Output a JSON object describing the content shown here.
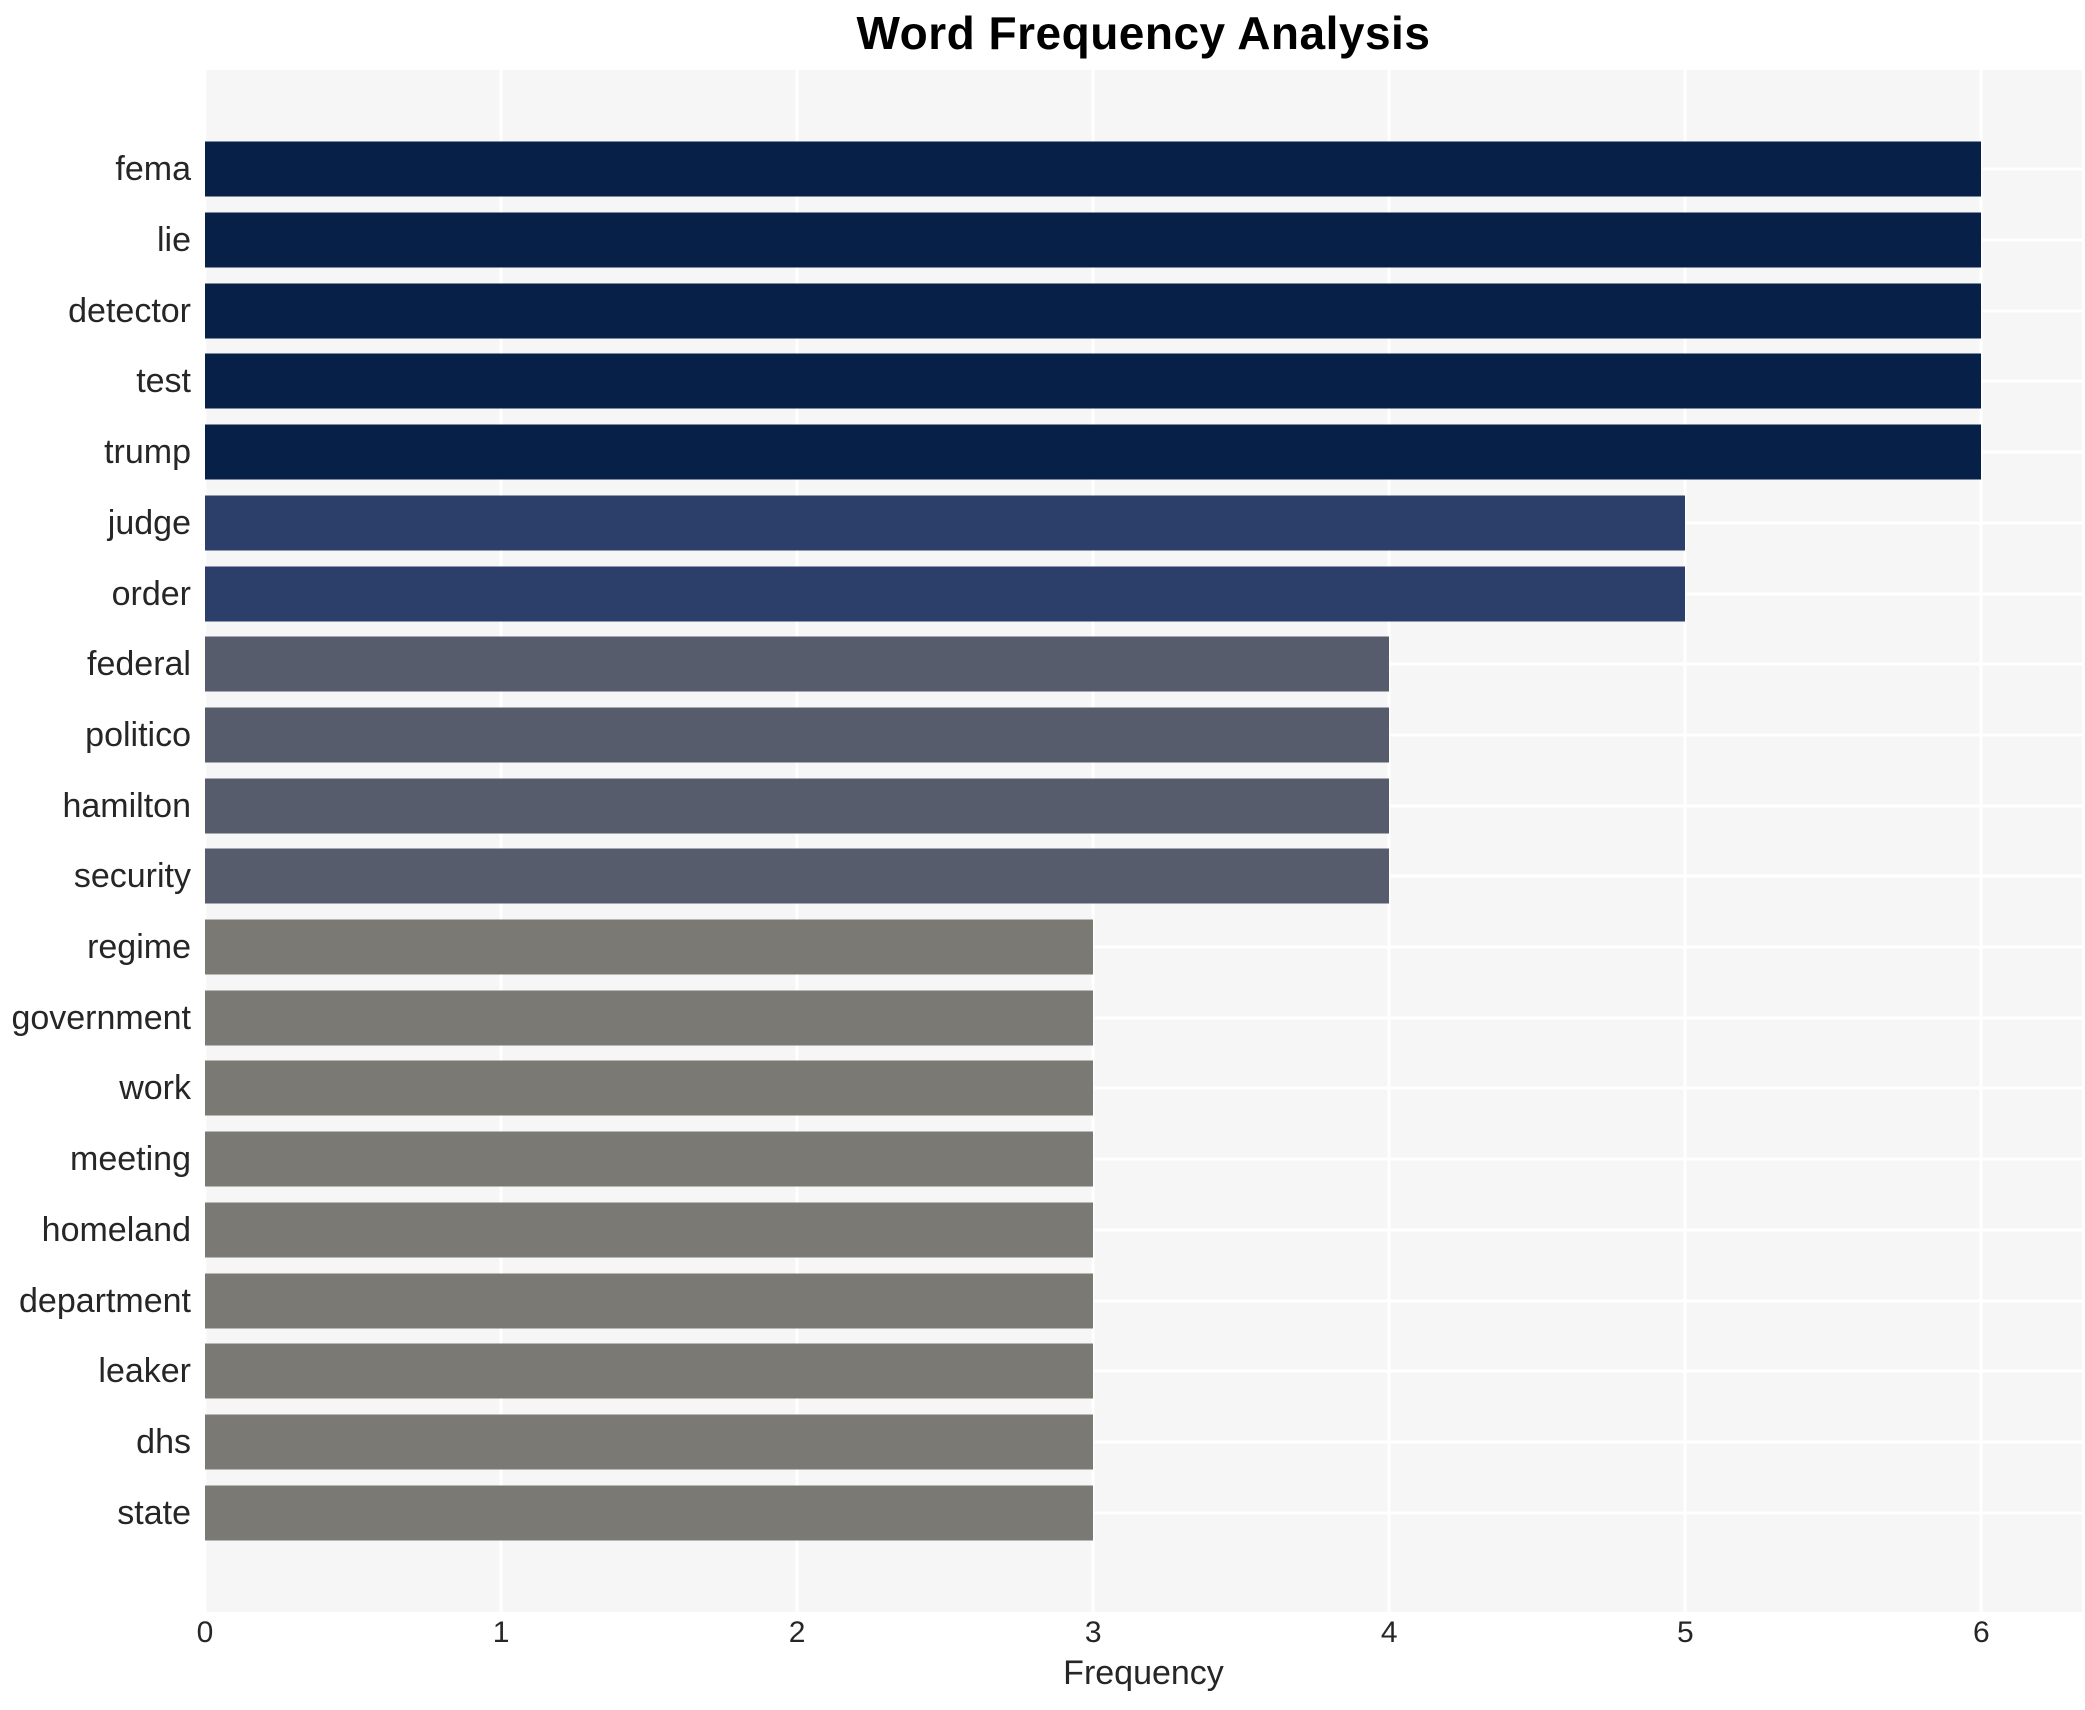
{
  "title": "Word Frequency Analysis",
  "chart_data": {
    "type": "bar",
    "orientation": "horizontal",
    "title": "Word Frequency Analysis",
    "xlabel": "Frequency",
    "ylabel": "",
    "categories": [
      "fema",
      "lie",
      "detector",
      "test",
      "trump",
      "judge",
      "order",
      "federal",
      "politico",
      "hamilton",
      "security",
      "regime",
      "government",
      "work",
      "meeting",
      "homeland",
      "department",
      "leaker",
      "dhs",
      "state"
    ],
    "values": [
      6,
      6,
      6,
      6,
      6,
      5,
      5,
      4,
      4,
      4,
      4,
      3,
      3,
      3,
      3,
      3,
      3,
      3,
      3,
      3
    ],
    "x_ticks": [
      0,
      1,
      2,
      3,
      4,
      5,
      6
    ],
    "xlim": [
      0,
      6.34
    ],
    "grid": true,
    "legend_position": "none",
    "value_colors": {
      "6": "#072047",
      "5": "#2c3f6b",
      "4": "#565c6c",
      "3": "#7b7973"
    },
    "panel_background": "#f6f6f7",
    "gridline_color": "#ffffff"
  }
}
